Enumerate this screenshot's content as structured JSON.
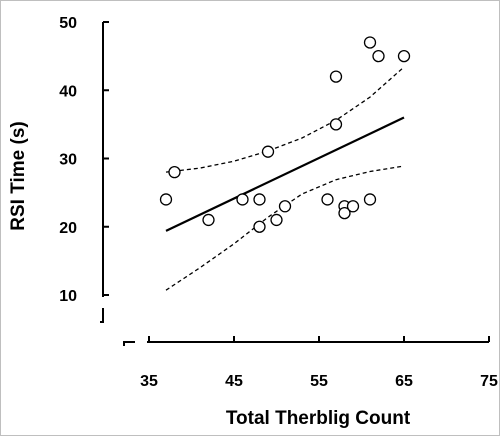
{
  "chart_data": {
    "type": "scatter",
    "xlabel": "Total Therblig Count",
    "ylabel": "RSI Time (s)",
    "xlim": [
      35,
      75
    ],
    "ylim": [
      10,
      50
    ],
    "xticks": [
      "35",
      "45",
      "55",
      "65",
      "75"
    ],
    "yticks": [
      "10",
      "20",
      "30",
      "40",
      "50"
    ],
    "axis_breaks": [
      "x",
      "y"
    ],
    "grid": false,
    "legend": "none",
    "points": [
      {
        "x": 37,
        "y": 24
      },
      {
        "x": 38,
        "y": 28
      },
      {
        "x": 42,
        "y": 21
      },
      {
        "x": 46,
        "y": 24
      },
      {
        "x": 48,
        "y": 24
      },
      {
        "x": 48,
        "y": 20
      },
      {
        "x": 49,
        "y": 31
      },
      {
        "x": 50,
        "y": 21
      },
      {
        "x": 51,
        "y": 23
      },
      {
        "x": 56,
        "y": 24
      },
      {
        "x": 57,
        "y": 35
      },
      {
        "x": 57,
        "y": 42
      },
      {
        "x": 58,
        "y": 23
      },
      {
        "x": 58,
        "y": 22
      },
      {
        "x": 59,
        "y": 23
      },
      {
        "x": 61,
        "y": 24
      },
      {
        "x": 61,
        "y": 47
      },
      {
        "x": 62,
        "y": 45
      },
      {
        "x": 65,
        "y": 45
      }
    ],
    "fit_line": [
      {
        "x": 37,
        "y": 19.4
      },
      {
        "x": 65,
        "y": 36.0
      }
    ],
    "confidence_upper": [
      {
        "x": 37,
        "y": 28.0
      },
      {
        "x": 41,
        "y": 28.6
      },
      {
        "x": 45,
        "y": 29.6
      },
      {
        "x": 49,
        "y": 31.1
      },
      {
        "x": 53,
        "y": 33.0
      },
      {
        "x": 57,
        "y": 35.6
      },
      {
        "x": 61,
        "y": 39.0
      },
      {
        "x": 65,
        "y": 43.4
      }
    ],
    "confidence_lower": [
      {
        "x": 37,
        "y": 10.7
      },
      {
        "x": 41,
        "y": 14.0
      },
      {
        "x": 45,
        "y": 17.5
      },
      {
        "x": 49,
        "y": 21.4
      },
      {
        "x": 53,
        "y": 24.8
      },
      {
        "x": 57,
        "y": 26.9
      },
      {
        "x": 61,
        "y": 28.1
      },
      {
        "x": 65,
        "y": 28.9
      }
    ],
    "colors": {
      "marker_edge": "#000000",
      "marker_fill": "#ffffff",
      "line": "#000000"
    }
  }
}
